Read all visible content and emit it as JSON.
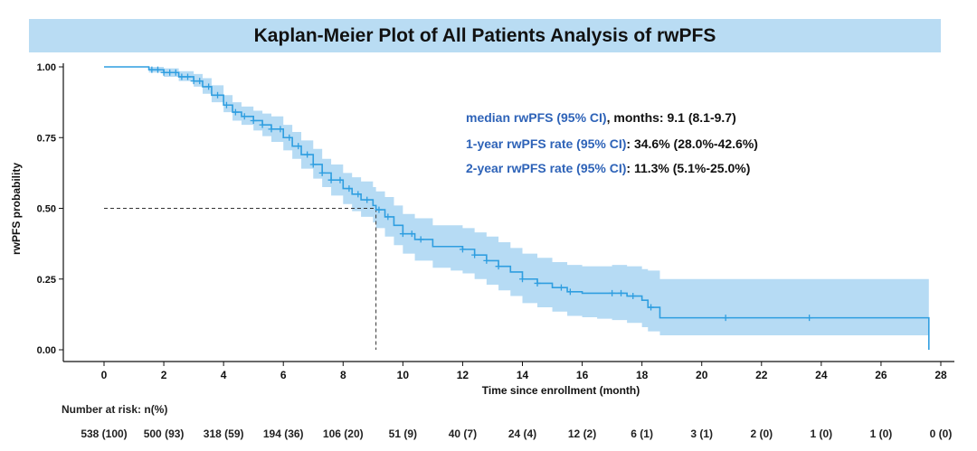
{
  "chart_data": {
    "type": "line",
    "title": "Kaplan-Meier Plot of All Patients Analysis of rwPFS",
    "xlabel": "Time since enrollment (month)",
    "ylabel": "rwPFS probability",
    "xlim": [
      0,
      28
    ],
    "ylim": [
      0,
      1
    ],
    "x_ticks": [
      "0",
      "2",
      "4",
      "6",
      "8",
      "10",
      "12",
      "14",
      "16",
      "18",
      "20",
      "22",
      "24",
      "26",
      "28"
    ],
    "y_ticks": [
      "0.00",
      "0.25",
      "0.50",
      "0.75",
      "1.00"
    ],
    "grid": false,
    "line_color": "#2f9ee0",
    "band_color": "#a9d5f2",
    "series": [
      {
        "x": [
          0,
          1.5,
          2,
          2.5,
          3,
          3.3,
          3.6,
          4,
          4.3,
          4.6,
          5,
          5.3,
          5.6,
          6,
          6.3,
          6.6,
          7,
          7.3,
          7.6,
          8,
          8.3,
          8.6,
          9,
          9.1,
          9.4,
          9.7,
          10,
          10.4,
          11,
          11.6,
          12,
          12.4,
          12.8,
          13.2,
          13.6,
          14,
          14.5,
          15,
          15.5,
          16,
          16.5,
          17,
          17.5,
          18,
          18.2,
          18.6,
          20,
          22,
          24,
          26,
          27.5,
          27.6
        ],
        "y": [
          1.0,
          0.99,
          0.98,
          0.965,
          0.95,
          0.93,
          0.9,
          0.865,
          0.84,
          0.825,
          0.81,
          0.795,
          0.78,
          0.75,
          0.72,
          0.69,
          0.655,
          0.625,
          0.6,
          0.57,
          0.55,
          0.53,
          0.51,
          0.495,
          0.47,
          0.44,
          0.41,
          0.39,
          0.365,
          0.365,
          0.355,
          0.335,
          0.315,
          0.295,
          0.275,
          0.25,
          0.235,
          0.22,
          0.205,
          0.2,
          0.2,
          0.2,
          0.19,
          0.175,
          0.15,
          0.113,
          0.113,
          0.113,
          0.113,
          0.113,
          0.113,
          0.0
        ],
        "ci_lower": [
          1.0,
          0.98,
          0.965,
          0.95,
          0.93,
          0.905,
          0.875,
          0.84,
          0.81,
          0.795,
          0.775,
          0.755,
          0.735,
          0.705,
          0.675,
          0.64,
          0.605,
          0.575,
          0.545,
          0.515,
          0.49,
          0.47,
          0.45,
          0.43,
          0.4,
          0.37,
          0.34,
          0.315,
          0.29,
          0.28,
          0.27,
          0.25,
          0.23,
          0.21,
          0.19,
          0.165,
          0.15,
          0.135,
          0.12,
          0.115,
          0.11,
          0.105,
          0.095,
          0.08,
          0.065,
          0.051,
          0.051,
          0.051,
          0.051,
          0.051,
          0.051,
          0.051
        ],
        "ci_upper": [
          1.0,
          1.0,
          0.995,
          0.985,
          0.975,
          0.96,
          0.935,
          0.9,
          0.875,
          0.86,
          0.845,
          0.835,
          0.825,
          0.795,
          0.77,
          0.74,
          0.71,
          0.675,
          0.655,
          0.625,
          0.61,
          0.595,
          0.575,
          0.56,
          0.54,
          0.51,
          0.48,
          0.465,
          0.44,
          0.44,
          0.43,
          0.415,
          0.4,
          0.38,
          0.36,
          0.34,
          0.325,
          0.31,
          0.3,
          0.295,
          0.295,
          0.3,
          0.295,
          0.285,
          0.28,
          0.25,
          0.25,
          0.25,
          0.25,
          0.25,
          0.25,
          0.25
        ],
        "censored_x": [
          1.6,
          1.8,
          2.0,
          2.2,
          2.4,
          2.6,
          2.8,
          3.0,
          3.2,
          3.5,
          3.8,
          4.1,
          4.4,
          4.7,
          5.0,
          5.3,
          5.6,
          5.9,
          6.2,
          6.5,
          6.8,
          7.0,
          7.3,
          7.6,
          7.9,
          8.2,
          8.5,
          8.8,
          9.2,
          9.5,
          10.0,
          10.3,
          10.6,
          12.0,
          12.4,
          12.8,
          13.2,
          14.0,
          14.5,
          15.3,
          15.6,
          17.0,
          17.3,
          17.7,
          18.3,
          20.8,
          23.6
        ]
      }
    ],
    "median_x": 9.1,
    "median_y": 0.5
  },
  "annotations": [
    {
      "key": "median rwPFS (95% CI)",
      "value": ", months: 9.1 (8.1-9.7)"
    },
    {
      "key": "1-year rwPFS rate (95% CI)",
      "value": ": 34.6% (28.0%-42.6%)"
    },
    {
      "key": "2-year rwPFS rate (95% CI)",
      "value": ": 11.3% (5.1%-25.0%)"
    }
  ],
  "risk_table": {
    "title": "Number at risk: n(%)",
    "values": [
      "538 (100)",
      "500 (93)",
      "318 (59)",
      "194 (36)",
      "106 (20)",
      "51 (9)",
      "40 (7)",
      "24 (4)",
      "12 (2)",
      "6 (1)",
      "3 (1)",
      "2 (0)",
      "1 (0)",
      "1 (0)",
      "0 (0)"
    ]
  }
}
